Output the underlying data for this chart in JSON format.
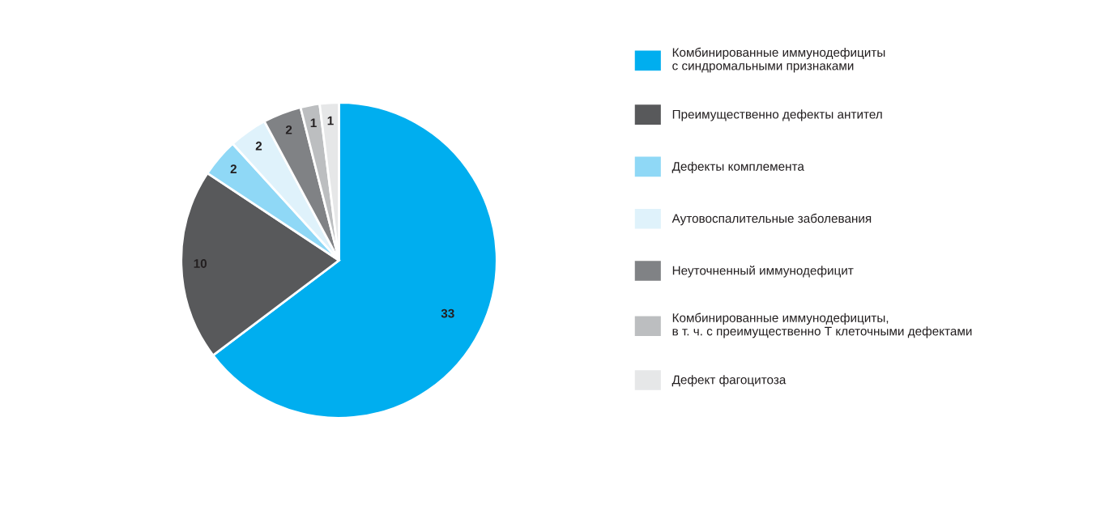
{
  "chart_data": {
    "type": "pie",
    "categories": [
      "Комбинированные иммунодефициты\nс синдромальными признаками",
      "Преимущественно дефекты антител",
      "Дефекты комплемента",
      "Аутовоспалительные заболевания",
      "Неуточненный иммунодефицит",
      "Комбинированные иммунодефициты,\nв т. ч. с преимущественно Т клеточными дефектами",
      "Дефект фагоцитоза"
    ],
    "values": [
      33,
      10,
      2,
      2,
      2,
      1,
      1
    ],
    "colors": [
      "#00aeef",
      "#58595b",
      "#8fd8f6",
      "#dff2fb",
      "#808285",
      "#bcbec0",
      "#e6e7e8"
    ],
    "data_labels": true,
    "legend": "right"
  }
}
